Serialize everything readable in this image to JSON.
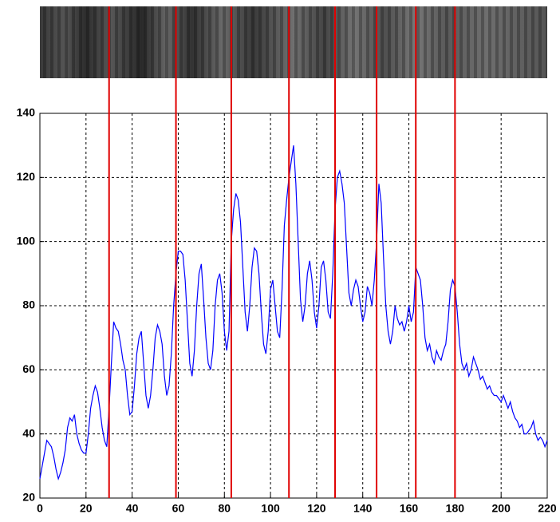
{
  "chart_data": {
    "type": "line",
    "x": [
      0,
      1,
      2,
      3,
      4,
      5,
      6,
      7,
      8,
      9,
      10,
      11,
      12,
      13,
      14,
      15,
      16,
      17,
      18,
      19,
      20,
      21,
      22,
      23,
      24,
      25,
      26,
      27,
      28,
      29,
      30,
      31,
      32,
      33,
      34,
      35,
      36,
      37,
      38,
      39,
      40,
      41,
      42,
      43,
      44,
      45,
      46,
      47,
      48,
      49,
      50,
      51,
      52,
      53,
      54,
      55,
      56,
      57,
      58,
      59,
      60,
      61,
      62,
      63,
      64,
      65,
      66,
      67,
      68,
      69,
      70,
      71,
      72,
      73,
      74,
      75,
      76,
      77,
      78,
      79,
      80,
      81,
      82,
      83,
      84,
      85,
      86,
      87,
      88,
      89,
      90,
      91,
      92,
      93,
      94,
      95,
      96,
      97,
      98,
      99,
      100,
      101,
      102,
      103,
      104,
      105,
      106,
      107,
      108,
      109,
      110,
      111,
      112,
      113,
      114,
      115,
      116,
      117,
      118,
      119,
      120,
      121,
      122,
      123,
      124,
      125,
      126,
      127,
      128,
      129,
      130,
      131,
      132,
      133,
      134,
      135,
      136,
      137,
      138,
      139,
      140,
      141,
      142,
      143,
      144,
      145,
      146,
      147,
      148,
      149,
      150,
      151,
      152,
      153,
      154,
      155,
      156,
      157,
      158,
      159,
      160,
      161,
      162,
      163,
      164,
      165,
      166,
      167,
      168,
      169,
      170,
      171,
      172,
      173,
      174,
      175,
      176,
      177,
      178,
      179,
      180,
      181,
      182,
      183,
      184,
      185,
      186,
      187,
      188,
      189,
      190,
      191,
      192,
      193,
      194,
      195,
      196,
      197,
      198,
      199,
      200,
      201,
      202,
      203,
      204,
      205,
      206,
      207,
      208,
      209,
      210,
      211,
      212,
      213,
      214,
      215,
      216,
      217,
      218,
      219,
      220
    ],
    "values": [
      26,
      30,
      34,
      38,
      37,
      36,
      33,
      29,
      26,
      28,
      31,
      35,
      42,
      45,
      44,
      46,
      40,
      37,
      35,
      34,
      34,
      40,
      48,
      52,
      55,
      53,
      48,
      42,
      38,
      36,
      48,
      62,
      75,
      73,
      72,
      68,
      63,
      60,
      52,
      46,
      47,
      55,
      65,
      70,
      72,
      62,
      52,
      48,
      52,
      60,
      70,
      74,
      72,
      68,
      58,
      52,
      55,
      65,
      80,
      90,
      97,
      97,
      96,
      88,
      75,
      62,
      58,
      66,
      80,
      90,
      93,
      82,
      70,
      62,
      60,
      66,
      80,
      88,
      90,
      84,
      72,
      66,
      72,
      100,
      110,
      115,
      113,
      106,
      92,
      78,
      72,
      80,
      92,
      98,
      97,
      90,
      78,
      68,
      65,
      72,
      85,
      88,
      80,
      72,
      70,
      85,
      105,
      113,
      120,
      125,
      130,
      118,
      100,
      82,
      75,
      80,
      90,
      94,
      88,
      78,
      73,
      80,
      92,
      94,
      88,
      78,
      76,
      90,
      110,
      120,
      122,
      118,
      112,
      98,
      84,
      80,
      85,
      88,
      86,
      80,
      75,
      78,
      86,
      84,
      80,
      88,
      100,
      118,
      112,
      95,
      80,
      72,
      68,
      72,
      80,
      76,
      74,
      75,
      72,
      75,
      80,
      75,
      78,
      92,
      90,
      88,
      80,
      70,
      66,
      68,
      64,
      62,
      66,
      64,
      63,
      66,
      68,
      75,
      85,
      88,
      86,
      78,
      68,
      62,
      60,
      62,
      58,
      60,
      64,
      62,
      60,
      57,
      58,
      56,
      54,
      55,
      53,
      52,
      52,
      51,
      50,
      52,
      50,
      48,
      50,
      47,
      45,
      44,
      42,
      43,
      40,
      40,
      41,
      42,
      44,
      40,
      38,
      39,
      38,
      36,
      38
    ],
    "color": "#0000ff",
    "vlines": [
      30,
      59,
      83,
      108,
      128,
      146,
      163,
      180
    ],
    "vline_color": "#e00000",
    "xlim": [
      0,
      220
    ],
    "xticks": [
      0,
      20,
      40,
      60,
      80,
      100,
      120,
      140,
      160,
      180,
      200,
      220
    ],
    "ylim": [
      20,
      140
    ],
    "yticks": [
      20,
      40,
      60,
      80,
      100,
      120,
      140
    ],
    "grid": true
  }
}
